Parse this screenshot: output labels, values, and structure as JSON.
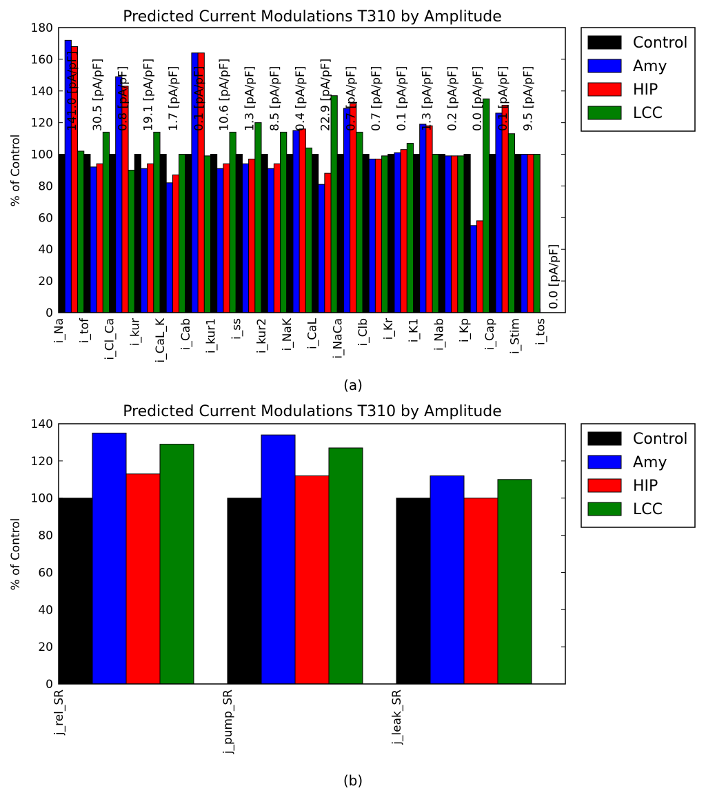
{
  "chart_data": [
    {
      "type": "bar",
      "title": "Predicted Current Modulations T310 by Amplitude",
      "xlabel": "",
      "ylabel": "% of Control",
      "ylim": [
        0,
        180
      ],
      "yticks": [
        0,
        20,
        40,
        60,
        80,
        100,
        120,
        140,
        160,
        180
      ],
      "caption": "(a)",
      "legend_position": "outside-right-top",
      "categories": [
        "i_Na",
        "i_tof",
        "i_Cl_Ca",
        "i_kur",
        "i_CaL_K",
        "i_Cab",
        "i_kur1",
        "i_ss",
        "i_kur2",
        "i_NaK",
        "i_CaL",
        "i_NaCa",
        "i_Clb",
        "i_Kr",
        "i_K1",
        "i_Nab",
        "i_Kp",
        "i_Cap",
        "i_Stim",
        "i_tos"
      ],
      "amplitude_labels": [
        "141.0 [pA/pF]",
        "30.5 [pA/pF]",
        "0.8 [pA/pF]",
        "19.1 [pA/pF]",
        "1.7 [pA/pF]",
        "0.1 [pA/pF]",
        "10.6 [pA/pF]",
        "1.3 [pA/pF]",
        "8.5 [pA/pF]",
        "0.4 [pA/pF]",
        "22.9 [pA/pF]",
        "0.7 [pA/pF]",
        "0.7 [pA/pF]",
        "0.1 [pA/pF]",
        "1.3 [pA/pF]",
        "0.2 [pA/pF]",
        "0.0 [pA/pF]",
        "0.1 [pA/pF]",
        "9.5 [pA/pF]",
        "0.0 [pA/pF]"
      ],
      "series": [
        {
          "name": "Control",
          "color": "#000000",
          "values": [
            100,
            100,
            100,
            100,
            100,
            100,
            100,
            100,
            100,
            100,
            100,
            100,
            100,
            100,
            100,
            100,
            100,
            100,
            100,
            0
          ]
        },
        {
          "name": "Amy",
          "color": "#0000ff",
          "values": [
            172,
            92,
            149,
            91,
            82,
            164,
            91,
            94,
            91,
            115,
            81,
            129,
            97,
            101,
            119,
            99,
            55,
            126,
            100,
            0
          ]
        },
        {
          "name": "HIP",
          "color": "#ff0000",
          "values": [
            168,
            94,
            143,
            94,
            87,
            164,
            94,
            97,
            94,
            116,
            88,
            132,
            97,
            103,
            118,
            99,
            58,
            131,
            100,
            0
          ]
        },
        {
          "name": "LCC",
          "color": "#008000",
          "values": [
            102,
            114,
            90,
            114,
            100,
            99,
            114,
            120,
            114,
            104,
            137,
            114,
            99,
            107,
            100,
            99,
            135,
            113,
            100,
            0
          ]
        }
      ]
    },
    {
      "type": "bar",
      "title": "Predicted Current Modulations T310 by Amplitude",
      "xlabel": "",
      "ylabel": "% of Control",
      "ylim": [
        0,
        140
      ],
      "yticks": [
        0,
        20,
        40,
        60,
        80,
        100,
        120,
        140
      ],
      "caption": "(b)",
      "legend_position": "outside-right-top",
      "categories": [
        "j_rel_SR",
        "j_pump_SR",
        "j_leak_SR"
      ],
      "series": [
        {
          "name": "Control",
          "color": "#000000",
          "values": [
            100,
            100,
            100
          ]
        },
        {
          "name": "Amy",
          "color": "#0000ff",
          "values": [
            135,
            134,
            112
          ]
        },
        {
          "name": "HIP",
          "color": "#ff0000",
          "values": [
            113,
            112,
            100
          ]
        },
        {
          "name": "LCC",
          "color": "#008000",
          "values": [
            129,
            127,
            110
          ]
        }
      ]
    }
  ]
}
